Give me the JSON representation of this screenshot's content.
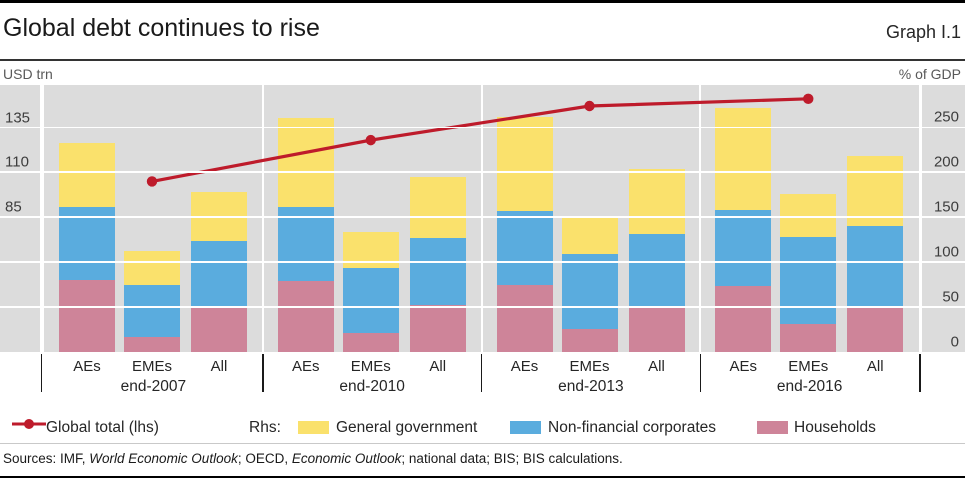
{
  "header": {
    "title": "Global debt continues to rise",
    "graph_label": "Graph I.1"
  },
  "axis_units": {
    "left": "USD trn",
    "right": "% of GDP"
  },
  "chart_data": {
    "type": "stacked-bar+line",
    "title": "Global debt continues to rise",
    "group_labels": [
      "end-2007",
      "end-2010",
      "end-2013",
      "end-2016"
    ],
    "bar_categories": [
      "AEs",
      "EMEs",
      "All"
    ],
    "stack_series": [
      "Households",
      "Non-financial corporates",
      "General government"
    ],
    "bars_pct_of_gdp": [
      {
        "group": "end-2007",
        "bars": [
          {
            "category": "AEs",
            "households": 80,
            "non_financial_corporates": 81,
            "general_government": 71
          },
          {
            "category": "EMEs",
            "households": 17,
            "non_financial_corporates": 57,
            "general_government": 38
          },
          {
            "category": "All",
            "households": 51,
            "non_financial_corporates": 72,
            "general_government": 55
          }
        ]
      },
      {
        "group": "end-2010",
        "bars": [
          {
            "category": "AEs",
            "households": 79,
            "non_financial_corporates": 82,
            "general_government": 99
          },
          {
            "category": "EMEs",
            "households": 21,
            "non_financial_corporates": 72,
            "general_government": 40
          },
          {
            "category": "All",
            "households": 52,
            "non_financial_corporates": 75,
            "general_government": 68
          }
        ]
      },
      {
        "group": "end-2013",
        "bars": [
          {
            "category": "AEs",
            "households": 74,
            "non_financial_corporates": 83,
            "general_government": 104
          },
          {
            "category": "EMEs",
            "households": 26,
            "non_financial_corporates": 83,
            "general_government": 40
          },
          {
            "category": "All",
            "households": 49,
            "non_financial_corporates": 82,
            "general_government": 73
          }
        ]
      },
      {
        "group": "end-2016",
        "bars": [
          {
            "category": "AEs",
            "households": 73,
            "non_financial_corporates": 85,
            "general_government": 113
          },
          {
            "category": "EMEs",
            "households": 31,
            "non_financial_corporates": 97,
            "general_government": 48
          },
          {
            "category": "All",
            "households": 50,
            "non_financial_corporates": 90,
            "general_government": 78
          }
        ]
      }
    ],
    "line_global_total_usd_trn": {
      "name": "Global total (lhs)",
      "values": [
        105,
        128,
        147,
        151
      ]
    },
    "left_axis": {
      "unit": "USD trn",
      "ticks": [
        135,
        110,
        85
      ],
      "min": 10,
      "max": 158.7
    },
    "right_axis": {
      "unit": "% of GDP",
      "ticks": [
        250,
        200,
        150,
        100,
        50,
        0
      ],
      "min": 0,
      "max": 297
    },
    "grid": true,
    "legend_position": "bottom"
  },
  "legend": {
    "line_label": "Global total (lhs)",
    "rhs_label": "Rhs:",
    "items": [
      {
        "key": "general_government",
        "label": "General government"
      },
      {
        "key": "non_financial_corporates",
        "label": "Non-financial corporates"
      },
      {
        "key": "households",
        "label": "Households"
      }
    ]
  },
  "footer": {
    "sources_parts": [
      {
        "text": "Sources: IMF, ",
        "italic": false
      },
      {
        "text": "World Economic Outlook",
        "italic": true
      },
      {
        "text": "; OECD, ",
        "italic": false
      },
      {
        "text": "Economic Outlook",
        "italic": true
      },
      {
        "text": "; national data; BIS; BIS calculations.",
        "italic": false
      }
    ]
  },
  "colors": {
    "general_government": "#FAE16C",
    "non_financial_corporates": "#5AACDE",
    "households": "#CE8499",
    "line": "#BE1B2B",
    "plot_bg": "#DCDCDC"
  }
}
